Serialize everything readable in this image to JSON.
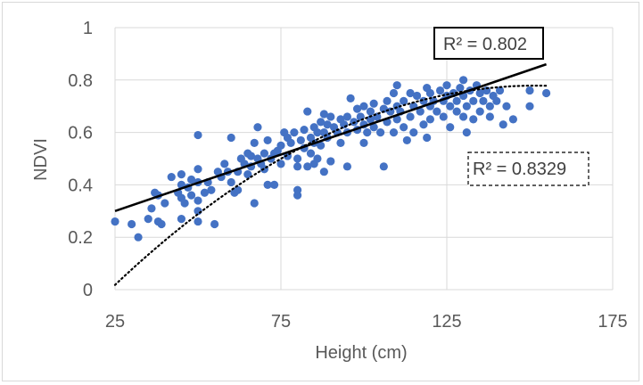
{
  "chart_data": {
    "type": "scatter",
    "title": "",
    "xlabel": "Height (cm)",
    "ylabel": "NDVI",
    "xlim": [
      25,
      175
    ],
    "ylim": [
      0,
      1
    ],
    "x_ticks": [
      "25",
      "75",
      "125",
      "175"
    ],
    "y_ticks": [
      "0",
      "0.2",
      "0.4",
      "0.6",
      "0.8",
      "1"
    ],
    "grid": "on",
    "point_color": "#4472c4",
    "series": [
      {
        "values": [
          [
            25,
            0.26
          ],
          [
            30,
            0.25
          ],
          [
            32,
            0.2
          ],
          [
            35,
            0.27
          ],
          [
            36,
            0.31
          ],
          [
            37,
            0.37
          ],
          [
            38,
            0.36
          ],
          [
            38,
            0.26
          ],
          [
            39,
            0.25
          ],
          [
            40,
            0.33
          ],
          [
            42,
            0.43
          ],
          [
            44,
            0.37
          ],
          [
            45,
            0.44
          ],
          [
            45,
            0.4
          ],
          [
            45,
            0.35
          ],
          [
            45,
            0.27
          ],
          [
            46,
            0.33
          ],
          [
            47,
            0.39
          ],
          [
            48,
            0.42
          ],
          [
            48,
            0.36
          ],
          [
            50,
            0.59
          ],
          [
            50,
            0.46
          ],
          [
            50,
            0.41
          ],
          [
            50,
            0.34
          ],
          [
            50,
            0.3
          ],
          [
            50,
            0.26
          ],
          [
            52,
            0.37
          ],
          [
            53,
            0.41
          ],
          [
            54,
            0.38
          ],
          [
            55,
            0.25
          ],
          [
            56,
            0.45
          ],
          [
            57,
            0.43
          ],
          [
            58,
            0.48
          ],
          [
            59,
            0.45
          ],
          [
            60,
            0.58
          ],
          [
            60,
            0.41
          ],
          [
            61,
            0.37
          ],
          [
            62,
            0.45
          ],
          [
            62,
            0.38
          ],
          [
            63,
            0.5
          ],
          [
            64,
            0.48
          ],
          [
            65,
            0.52
          ],
          [
            65,
            0.44
          ],
          [
            66,
            0.51
          ],
          [
            66,
            0.47
          ],
          [
            67,
            0.56
          ],
          [
            67,
            0.33
          ],
          [
            68,
            0.62
          ],
          [
            68,
            0.5
          ],
          [
            69,
            0.48
          ],
          [
            70,
            0.52
          ],
          [
            70,
            0.46
          ],
          [
            71,
            0.57
          ],
          [
            71,
            0.4
          ],
          [
            72,
            0.5
          ],
          [
            73,
            0.52
          ],
          [
            73,
            0.4
          ],
          [
            74,
            0.53
          ],
          [
            75,
            0.55
          ],
          [
            75,
            0.48
          ],
          [
            76,
            0.6
          ],
          [
            77,
            0.58
          ],
          [
            77,
            0.51
          ],
          [
            78,
            0.56
          ],
          [
            79,
            0.6
          ],
          [
            80,
            0.5
          ],
          [
            80,
            0.47
          ],
          [
            80,
            0.38
          ],
          [
            80,
            0.36
          ],
          [
            81,
            0.57
          ],
          [
            82,
            0.61
          ],
          [
            82,
            0.54
          ],
          [
            83,
            0.68
          ],
          [
            83,
            0.47
          ],
          [
            84,
            0.58
          ],
          [
            84,
            0.52
          ],
          [
            85,
            0.62
          ],
          [
            85,
            0.56
          ],
          [
            85,
            0.48
          ],
          [
            86,
            0.6
          ],
          [
            86,
            0.5
          ],
          [
            87,
            0.64
          ],
          [
            87,
            0.55
          ],
          [
            88,
            0.67
          ],
          [
            88,
            0.6
          ],
          [
            88,
            0.45
          ],
          [
            89,
            0.63
          ],
          [
            89,
            0.58
          ],
          [
            90,
            0.66
          ],
          [
            90,
            0.49
          ],
          [
            91,
            0.62
          ],
          [
            92,
            0.6
          ],
          [
            93,
            0.65
          ],
          [
            93,
            0.56
          ],
          [
            94,
            0.63
          ],
          [
            95,
            0.66
          ],
          [
            95,
            0.6
          ],
          [
            95,
            0.47
          ],
          [
            96,
            0.73
          ],
          [
            97,
            0.64
          ],
          [
            98,
            0.69
          ],
          [
            98,
            0.61
          ],
          [
            99,
            0.66
          ],
          [
            100,
            0.7
          ],
          [
            100,
            0.63
          ],
          [
            100,
            0.56
          ],
          [
            101,
            0.6
          ],
          [
            102,
            0.68
          ],
          [
            102,
            0.65
          ],
          [
            103,
            0.71
          ],
          [
            103,
            0.62
          ],
          [
            104,
            0.66
          ],
          [
            105,
            0.6
          ],
          [
            106,
            0.69
          ],
          [
            106,
            0.47
          ],
          [
            107,
            0.72
          ],
          [
            107,
            0.64
          ],
          [
            108,
            0.68
          ],
          [
            109,
            0.75
          ],
          [
            109,
            0.6
          ],
          [
            110,
            0.78
          ],
          [
            110,
            0.7
          ],
          [
            110,
            0.65
          ],
          [
            111,
            0.68
          ],
          [
            112,
            0.72
          ],
          [
            112,
            0.62
          ],
          [
            113,
            0.57
          ],
          [
            114,
            0.75
          ],
          [
            114,
            0.66
          ],
          [
            115,
            0.7
          ],
          [
            115,
            0.6
          ],
          [
            116,
            0.74
          ],
          [
            117,
            0.68
          ],
          [
            118,
            0.72
          ],
          [
            118,
            0.63
          ],
          [
            119,
            0.77
          ],
          [
            119,
            0.58
          ],
          [
            120,
            0.75
          ],
          [
            120,
            0.7
          ],
          [
            120,
            0.65
          ],
          [
            121,
            0.72
          ],
          [
            122,
            0.68
          ],
          [
            123,
            0.76
          ],
          [
            124,
            0.72
          ],
          [
            124,
            0.66
          ],
          [
            125,
            0.78
          ],
          [
            125,
            0.74
          ],
          [
            126,
            0.7
          ],
          [
            126,
            0.62
          ],
          [
            127,
            0.75
          ],
          [
            128,
            0.72
          ],
          [
            128,
            0.68
          ],
          [
            129,
            0.77
          ],
          [
            130,
            0.8
          ],
          [
            130,
            0.74
          ],
          [
            130,
            0.66
          ],
          [
            131,
            0.7
          ],
          [
            131,
            0.6
          ],
          [
            132,
            0.76
          ],
          [
            133,
            0.72
          ],
          [
            133,
            0.65
          ],
          [
            134,
            0.78
          ],
          [
            135,
            0.75
          ],
          [
            135,
            0.68
          ],
          [
            136,
            0.72
          ],
          [
            137,
            0.76
          ],
          [
            138,
            0.7
          ],
          [
            138,
            0.66
          ],
          [
            139,
            0.74
          ],
          [
            140,
            0.72
          ],
          [
            141,
            0.76
          ],
          [
            142,
            0.63
          ],
          [
            143,
            0.7
          ],
          [
            145,
            0.65
          ],
          [
            150,
            0.76
          ],
          [
            150,
            0.7
          ],
          [
            155,
            0.75
          ]
        ]
      }
    ],
    "trendlines": [
      {
        "kind": "linear",
        "style": "solid",
        "color": "#000000",
        "r2_label": "R² = 0.802",
        "x_range": [
          25,
          155
        ],
        "y_range": [
          0.3,
          0.86
        ]
      },
      {
        "kind": "polynomial",
        "style": "dotted",
        "color": "#000000",
        "r2_label": "R² = 0.8329",
        "x_range": [
          25,
          155
        ],
        "coefficients": [
          -0.3113,
          0.01436,
          -4.73e-05
        ]
      }
    ]
  }
}
